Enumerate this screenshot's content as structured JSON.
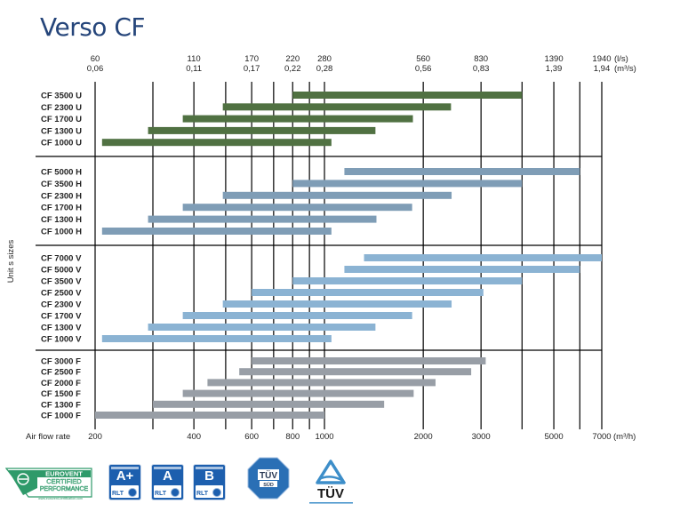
{
  "title": "Verso CF",
  "colors": {
    "title": "#25457a",
    "group_U": "#507142",
    "group_H": "#7f9db6",
    "group_V": "#8bb3d3",
    "group_F": "#989ea6",
    "grid": "#000000",
    "badge_blue": "#1d5fae",
    "eurovent_green": "#2f9a6a",
    "tuv_blue": "#3d8ec9"
  },
  "chart_data": {
    "type": "range-bar",
    "title": "Verso CF",
    "xscale": "log",
    "xlim": [
      200,
      7000
    ],
    "xlabel": "Air flow rate",
    "xunit": "(m³/h)",
    "ylabel": "Unit s sizes",
    "grid": true,
    "bottom_ticks": [
      {
        "value": 200,
        "label": "200"
      },
      {
        "value": 300,
        "label": ""
      },
      {
        "value": 400,
        "label": "400"
      },
      {
        "value": 500,
        "label": ""
      },
      {
        "value": 600,
        "label": "600"
      },
      {
        "value": 700,
        "label": ""
      },
      {
        "value": 800,
        "label": "800"
      },
      {
        "value": 900,
        "label": ""
      },
      {
        "value": 1000,
        "label": "1000"
      },
      {
        "value": 2000,
        "label": "2000"
      },
      {
        "value": 3000,
        "label": "3000"
      },
      {
        "value": 4000,
        "label": ""
      },
      {
        "value": 5000,
        "label": "5000"
      },
      {
        "value": 6000,
        "label": ""
      },
      {
        "value": 7000,
        "label": "7000"
      }
    ],
    "top_ticks": [
      {
        "value": 200,
        "ls": "60",
        "m3s": "0,06"
      },
      {
        "value": 400,
        "ls": "110",
        "m3s": "0,11"
      },
      {
        "value": 600,
        "ls": "170",
        "m3s": "0,17"
      },
      {
        "value": 800,
        "ls": "220",
        "m3s": "0,22"
      },
      {
        "value": 1000,
        "ls": "280",
        "m3s": "0,28"
      },
      {
        "value": 2000,
        "ls": "560",
        "m3s": "0,56"
      },
      {
        "value": 3000,
        "ls": "830",
        "m3s": "0,83"
      },
      {
        "value": 5000,
        "ls": "1390",
        "m3s": "1,39"
      },
      {
        "value": 7000,
        "ls": "1940",
        "m3s": "1,94"
      }
    ],
    "top_units": {
      "ls": "(l/s)",
      "m3s": "(m³/s)"
    },
    "groups": [
      {
        "name": "U",
        "color": "#507142",
        "rows": [
          {
            "label": "CF 3500 U",
            "min": 800,
            "max": 4000
          },
          {
            "label": "CF 2300 U",
            "min": 490,
            "max": 2430
          },
          {
            "label": "CF 1700 U",
            "min": 370,
            "max": 1860
          },
          {
            "label": "CF 1300 U",
            "min": 290,
            "max": 1430
          },
          {
            "label": "CF 1000 U",
            "min": 210,
            "max": 1050
          }
        ]
      },
      {
        "name": "H",
        "color": "#7f9db6",
        "rows": [
          {
            "label": "CF 5000 H",
            "min": 1150,
            "max": 6000
          },
          {
            "label": "CF 3500 H",
            "min": 800,
            "max": 4000
          },
          {
            "label": "CF 2300 H",
            "min": 490,
            "max": 2440
          },
          {
            "label": "CF 1700 H",
            "min": 370,
            "max": 1850
          },
          {
            "label": "CF 1300 H",
            "min": 290,
            "max": 1440
          },
          {
            "label": "CF 1000 H",
            "min": 210,
            "max": 1050
          }
        ]
      },
      {
        "name": "V",
        "color": "#8bb3d3",
        "rows": [
          {
            "label": "CF 7000 V",
            "min": 1320,
            "max": 7000
          },
          {
            "label": "CF 5000 V",
            "min": 1150,
            "max": 6000
          },
          {
            "label": "CF 3500 V",
            "min": 800,
            "max": 4000
          },
          {
            "label": "CF 2500 V",
            "min": 600,
            "max": 3050
          },
          {
            "label": "CF 2300 V",
            "min": 490,
            "max": 2440
          },
          {
            "label": "CF 1700 V",
            "min": 370,
            "max": 1850
          },
          {
            "label": "CF 1300 V",
            "min": 290,
            "max": 1430
          },
          {
            "label": "CF 1000 V",
            "min": 210,
            "max": 1050
          }
        ]
      },
      {
        "name": "F",
        "color": "#989ea6",
        "rows": [
          {
            "label": "CF 3000 F",
            "min": 600,
            "max": 3100
          },
          {
            "label": "CF 2500 F",
            "min": 550,
            "max": 2800
          },
          {
            "label": "CF 2000 F",
            "min": 440,
            "max": 2180
          },
          {
            "label": "CF 1500 F",
            "min": 370,
            "max": 1870
          },
          {
            "label": "CF 1300 F",
            "min": 300,
            "max": 1520
          },
          {
            "label": "CF 1000 F",
            "min": 200,
            "max": 1000
          }
        ]
      }
    ]
  },
  "logos": {
    "eurovent": {
      "line1": "EUROVENT",
      "line2": "CERTIFIED",
      "line3": "PERFORMANCE",
      "url": "www.eurovent-certification.com"
    },
    "badges": [
      {
        "grade": "A+",
        "mark": "RLT"
      },
      {
        "grade": "A",
        "mark": "RLT"
      },
      {
        "grade": "B",
        "mark": "RLT"
      }
    ],
    "tuv_sud": {
      "line1": "TÜV",
      "line2": "SÜD"
    },
    "tuv": {
      "text": "TÜV"
    }
  }
}
